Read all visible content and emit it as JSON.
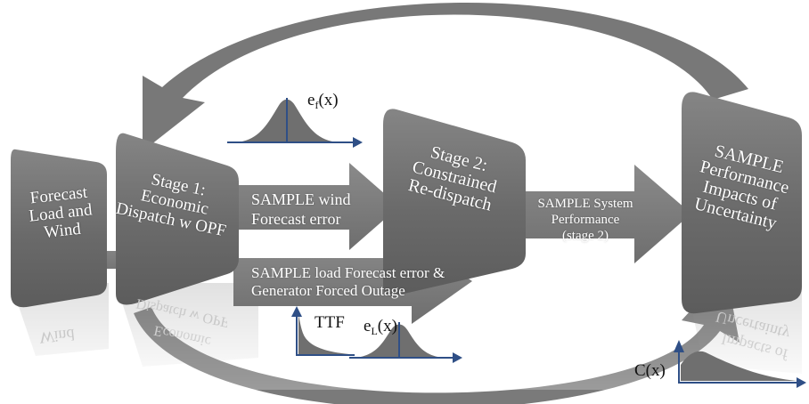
{
  "boxes": {
    "forecast": "Forecast\nLoad and\nWind",
    "stage1": "Stage 1:\nEconomic\nDispatch w OPF",
    "stage2": "Stage 2:\nConstrained\nRe-dispatch",
    "sample_perf": "SAMPLE\nPerformance\nImpacts of\nUncertainty"
  },
  "arrows": {
    "wind": "SAMPLE wind\nForecast error",
    "load": "SAMPLE load Forecast error &\nGenerator Forced Outage",
    "system": "SAMPLE System\nPerformance\n(stage 2)"
  },
  "plots": {
    "ef_base": "e",
    "ef_sub": "f",
    "ef_arg": "(x)",
    "ttf": "TTF",
    "el_base": "e",
    "el_sub": "L",
    "el_arg": "(x)",
    "cx": "C(x)"
  },
  "reflection": {
    "wind": "Wind",
    "dispatch": "Dispatch w OPF",
    "economic": "Economic",
    "uncertainty": "Uncertainty",
    "impacts": "Impacts of"
  },
  "colors": {
    "box_fill": "#6e6e6e",
    "arrow_fill": "#777777",
    "axis_blue": "#2f4f86"
  }
}
